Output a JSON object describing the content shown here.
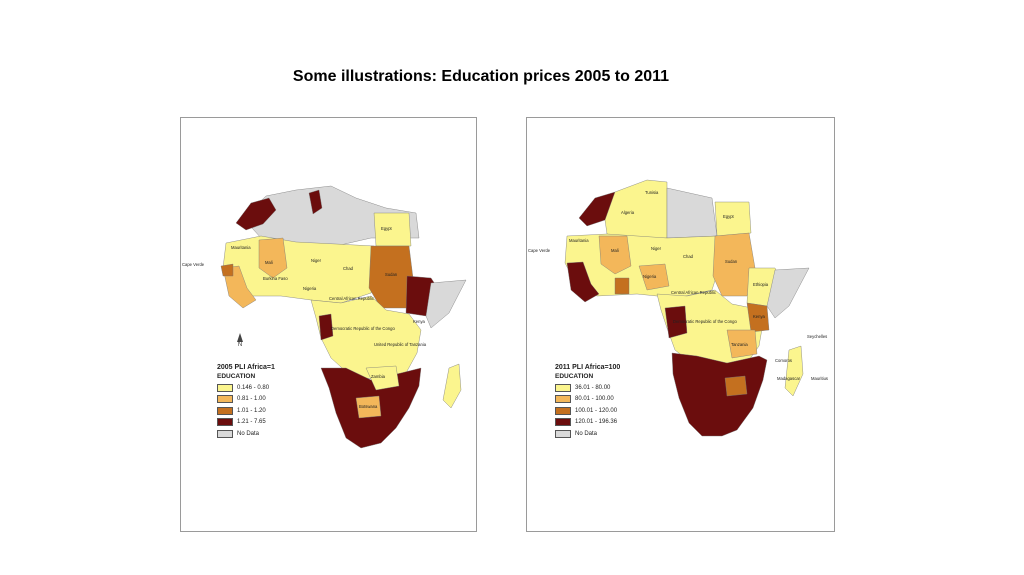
{
  "slide": {
    "title": "Some illustrations: Education prices 2005 to 2011"
  },
  "maps": [
    {
      "id": "2005",
      "legend_title": "2005 PLI Africa=1",
      "legend_subtitle": "EDUCATION",
      "north_label": "N",
      "classes": [
        {
          "label": "0.146 - 0.80",
          "color": "#fbf58e"
        },
        {
          "label": "0.81 - 1.00",
          "color": "#f3b75a"
        },
        {
          "label": "1.01 - 1.20",
          "color": "#c4701f"
        },
        {
          "label": "1.21 - 7.65",
          "color": "#6b0d0d"
        },
        {
          "label": "No Data",
          "color": "#d9d9d9"
        }
      ],
      "country_labels": [
        "Egypt",
        "Mauritania",
        "Mali",
        "Niger",
        "Chad",
        "Sudan",
        "Burkina Faso",
        "Guinea",
        "Sierra Leone",
        "Cote d'Ivoire",
        "Liberia",
        "Ghana",
        "Togo",
        "Benin",
        "Nigeria",
        "Cameroon",
        "Central African Republic",
        "Equatorial Guinea",
        "Sao Tome and Principe",
        "Gabon",
        "Congo",
        "Democratic Republic of the Congo",
        "Uganda",
        "Kenya",
        "Rwanda",
        "Burundi",
        "United Republic of Tanzania",
        "Zambia",
        "Malawi",
        "Mozambique",
        "Botswana",
        "Cape Verde",
        "Senegal",
        "Gambia",
        "Guinea-Bissau",
        "Ethiopia",
        "Madagascar"
      ]
    },
    {
      "id": "2011",
      "legend_title": "2011 PLI Africa=100",
      "legend_subtitle": "EDUCATION",
      "north_label": "N",
      "classes": [
        {
          "label": "36.01 - 80.00",
          "color": "#fbf58e"
        },
        {
          "label": "80.01 - 100.00",
          "color": "#f3b75a"
        },
        {
          "label": "100.01 - 120.00",
          "color": "#c4701f"
        },
        {
          "label": "120.01 - 196.36",
          "color": "#6b0d0d"
        },
        {
          "label": "No Data",
          "color": "#d9d9d9"
        }
      ],
      "country_labels": [
        "Tunisia",
        "Algeria",
        "Egypt",
        "Mauritania",
        "Mali",
        "Niger",
        "Chad",
        "Sudan",
        "Ethiopia",
        "Burkina Faso",
        "Guinea",
        "Nigeria",
        "Cameroon",
        "Central African Republic",
        "Sao Tome and Principe",
        "Congo",
        "Democratic Republic of the Congo",
        "Uganda",
        "Kenya",
        "Rwanda",
        "Burundi",
        "Tanzania",
        "Seychelles",
        "Comoros",
        "Madagascar",
        "Mauritius",
        "Cape Verde",
        "Senegal",
        "Gambia",
        "Guinea-Bissau",
        "Sierra Leone",
        "Liberia",
        "Ghana",
        "Togo",
        "Benin"
      ]
    }
  ]
}
